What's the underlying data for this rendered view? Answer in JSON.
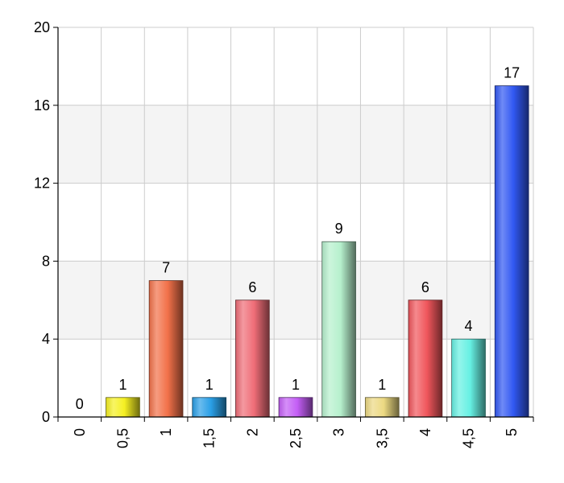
{
  "chart_data": {
    "type": "bar",
    "categories": [
      "0",
      "0,5",
      "1",
      "1,5",
      "2",
      "2,5",
      "3",
      "3,5",
      "4",
      "4,5",
      "5"
    ],
    "values": [
      0,
      1,
      7,
      1,
      6,
      1,
      9,
      1,
      6,
      4,
      17
    ],
    "bar_colors": [
      "#cccccc",
      "#f5f022",
      "#f2714a",
      "#2a9fe6",
      "#ef6d77",
      "#c35ef5",
      "#b6f0cd",
      "#ecd982",
      "#f0565c",
      "#66f0e3",
      "#3158f2"
    ],
    "yticks": [
      "0",
      "4",
      "8",
      "12",
      "16",
      "20"
    ],
    "ylim": [
      0,
      20
    ],
    "grid": true,
    "band_color": "#f4f4f4",
    "grid_color": "#cccccc"
  }
}
